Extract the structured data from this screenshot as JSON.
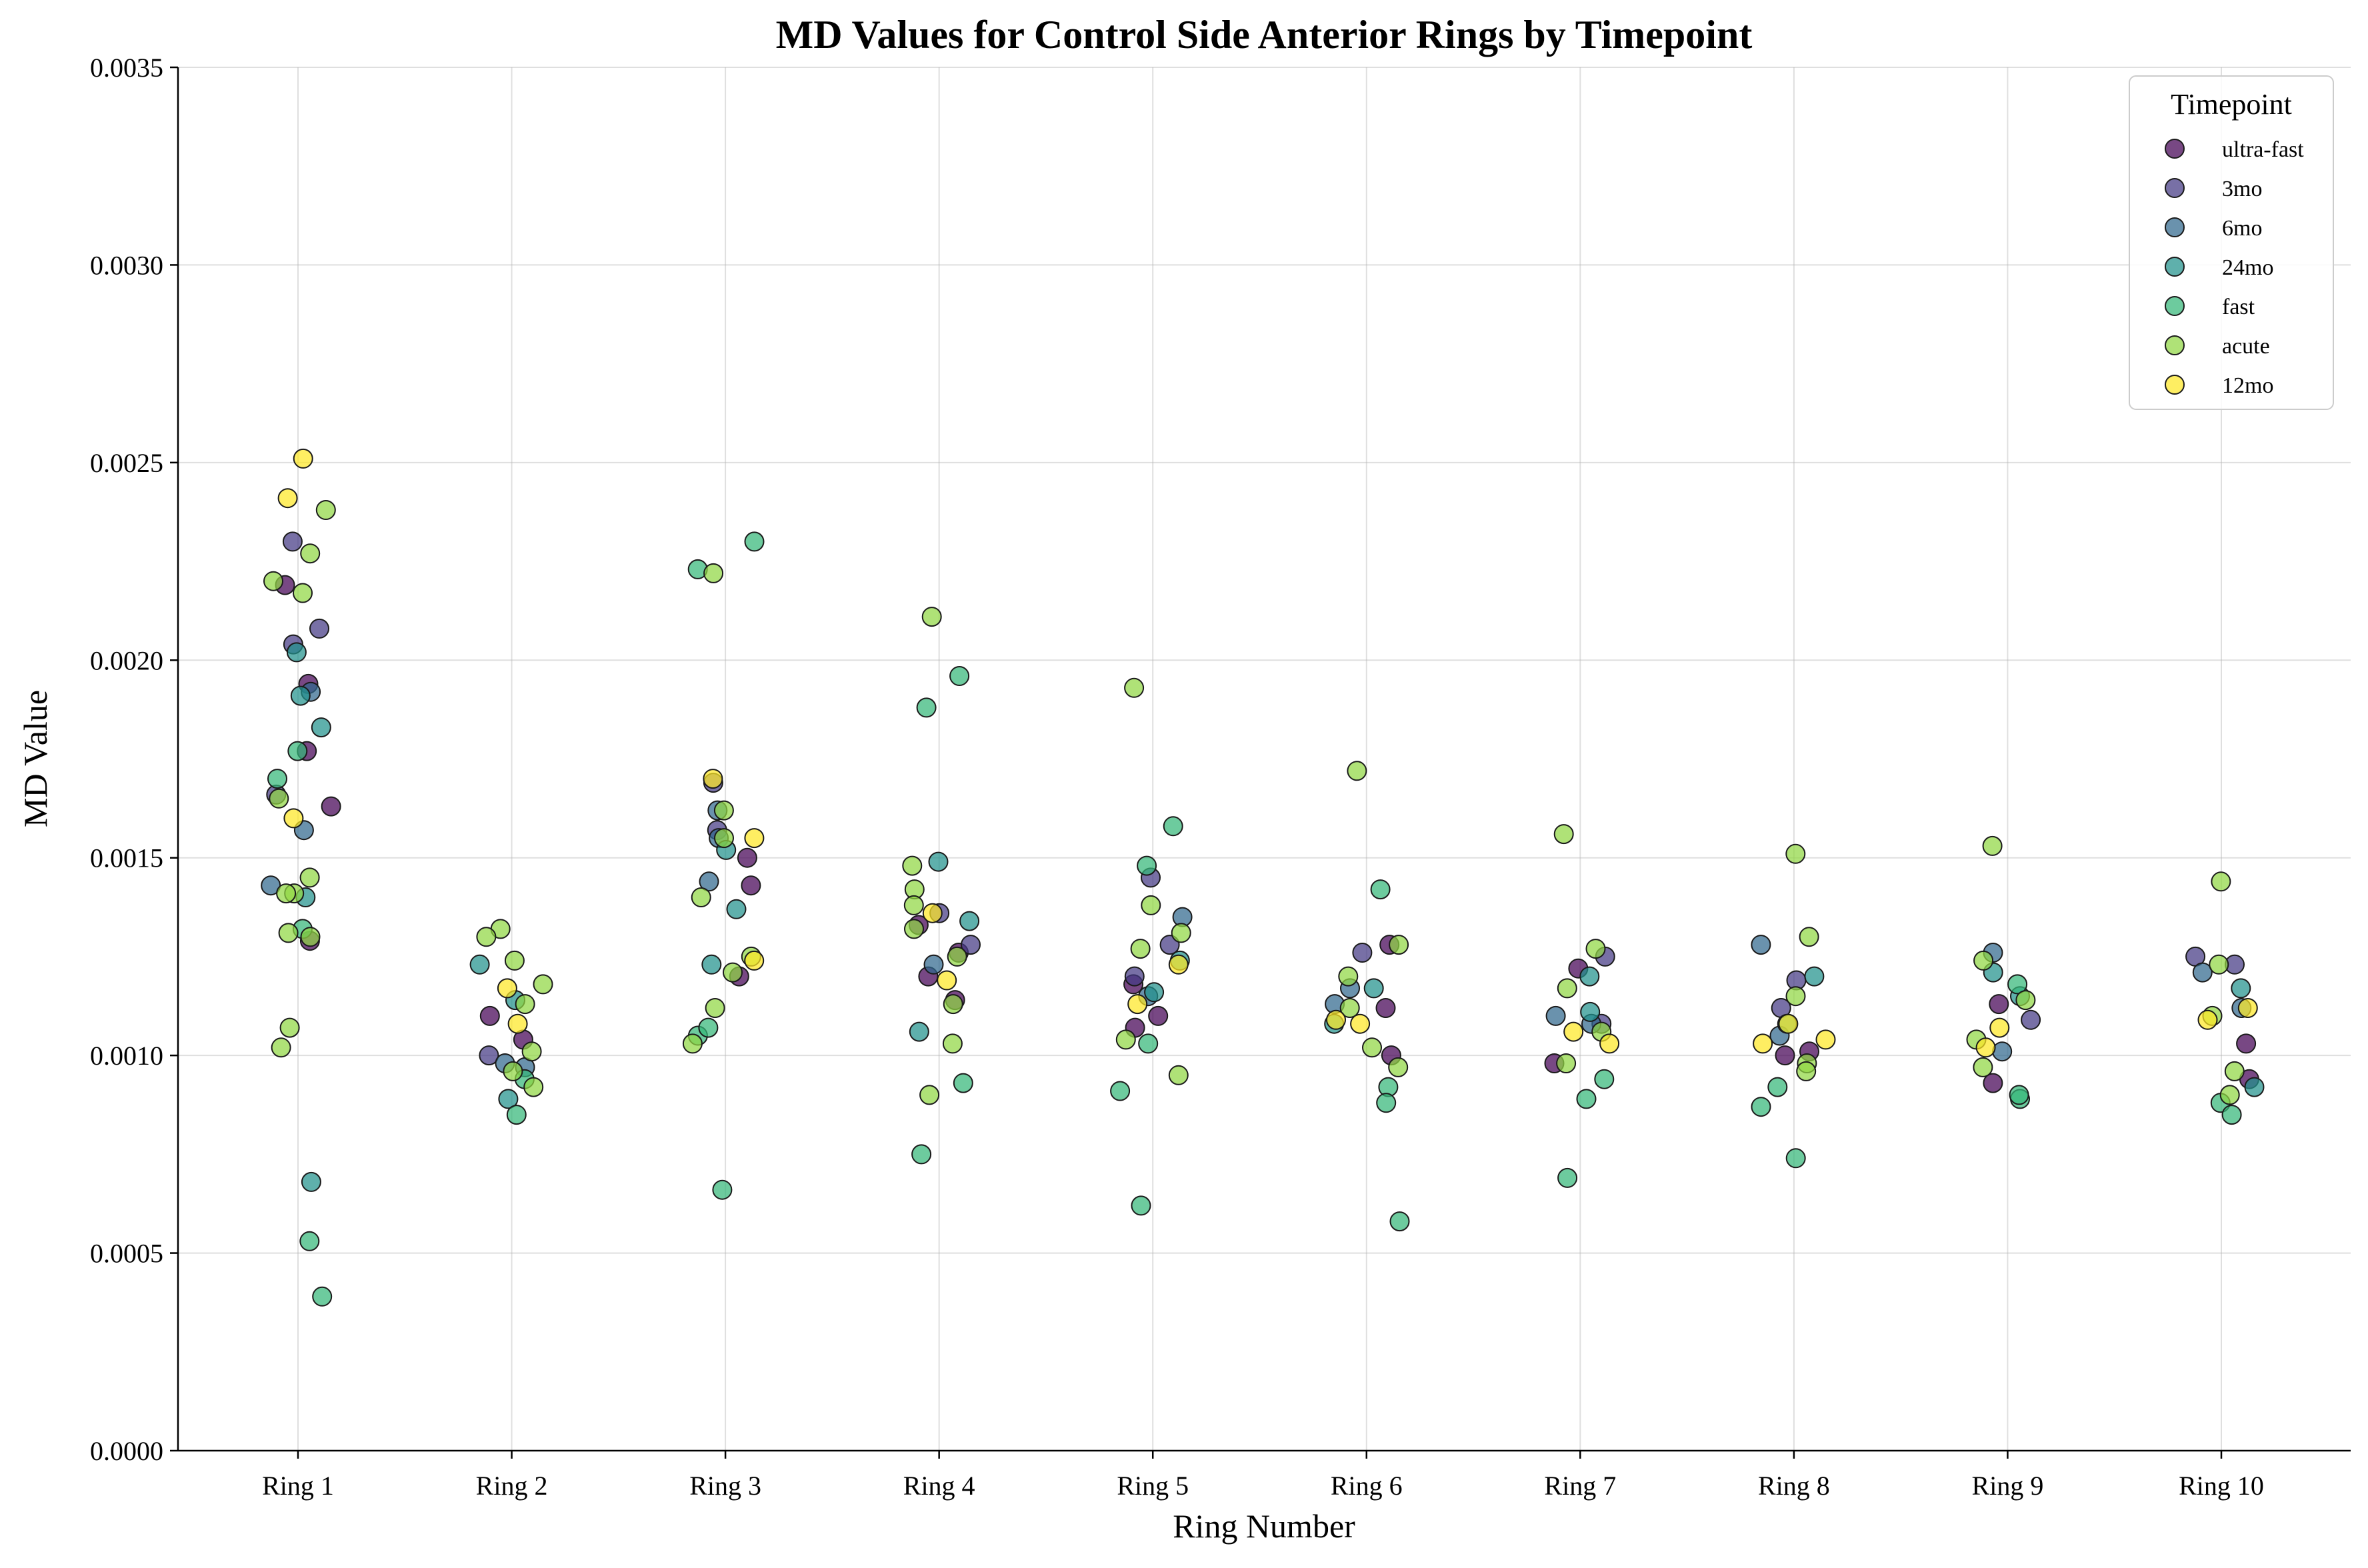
{
  "chart_data": {
    "type": "scatter",
    "title": "MD Values for Control Side Anterior Rings by Timepoint",
    "xlabel": "Ring Number",
    "ylabel": "MD Value",
    "ylim": [
      0,
      0.0035
    ],
    "yticks": [
      0.0,
      0.0005,
      0.001,
      0.0015,
      0.002,
      0.0025,
      0.003,
      0.0035
    ],
    "ytick_labels": [
      "0.0000",
      "0.0005",
      "0.0010",
      "0.0015",
      "0.0020",
      "0.0025",
      "0.0030",
      "0.0035"
    ],
    "categories": [
      "Ring 1",
      "Ring 2",
      "Ring 3",
      "Ring 4",
      "Ring 5",
      "Ring 6",
      "Ring 7",
      "Ring 8",
      "Ring 9",
      "Ring 10"
    ],
    "grid": true,
    "legend": {
      "title": "Timepoint",
      "placement": "top-right"
    },
    "series": [
      {
        "name": "ultra-fast",
        "color": "#440154",
        "points": [
          [
            1,
            0.00194
          ],
          [
            1,
            0.00219
          ],
          [
            1,
            0.00177
          ],
          [
            1,
            0.00163
          ],
          [
            1,
            0.00129
          ],
          [
            2,
            0.00104
          ],
          [
            2,
            0.0011
          ],
          [
            3,
            0.00143
          ],
          [
            3,
            0.0012
          ],
          [
            3,
            0.0015
          ],
          [
            4,
            0.00114
          ],
          [
            4,
            0.0012
          ],
          [
            4,
            0.00126
          ],
          [
            4,
            0.00133
          ],
          [
            5,
            0.0011
          ],
          [
            5,
            0.00107
          ],
          [
            5,
            0.00118
          ],
          [
            6,
            0.00112
          ],
          [
            6,
            0.001
          ],
          [
            6,
            0.00128
          ],
          [
            7,
            0.00098
          ],
          [
            7,
            0.00122
          ],
          [
            8,
            0.00101
          ],
          [
            8,
            0.001
          ],
          [
            9,
            0.00093
          ],
          [
            9,
            0.00113
          ],
          [
            10,
            0.00094
          ],
          [
            10,
            0.00103
          ]
        ]
      },
      {
        "name": "3mo",
        "color": "#443983",
        "points": [
          [
            1,
            0.0023
          ],
          [
            1,
            0.00204
          ],
          [
            1,
            0.00208
          ],
          [
            1,
            0.00166
          ],
          [
            2,
            0.001
          ],
          [
            3,
            0.00169
          ],
          [
            3,
            0.00157
          ],
          [
            4,
            0.00136
          ],
          [
            4,
            0.00128
          ],
          [
            5,
            0.00145
          ],
          [
            5,
            0.00128
          ],
          [
            5,
            0.0012
          ],
          [
            6,
            0.00126
          ],
          [
            7,
            0.00125
          ],
          [
            7,
            0.00108
          ],
          [
            8,
            0.00112
          ],
          [
            8,
            0.00119
          ],
          [
            9,
            0.00109
          ],
          [
            10,
            0.00123
          ],
          [
            10,
            0.00125
          ]
        ]
      },
      {
        "name": "6mo",
        "color": "#31688e",
        "points": [
          [
            1,
            0.00157
          ],
          [
            1,
            0.00143
          ],
          [
            1,
            0.00192
          ],
          [
            2,
            0.00098
          ],
          [
            2,
            0.00097
          ],
          [
            3,
            0.00144
          ],
          [
            3,
            0.00162
          ],
          [
            3,
            0.00155
          ],
          [
            4,
            0.00123
          ],
          [
            5,
            0.00135
          ],
          [
            5,
            0.00115
          ],
          [
            6,
            0.00113
          ],
          [
            6,
            0.00117
          ],
          [
            7,
            0.0011
          ],
          [
            7,
            0.00108
          ],
          [
            8,
            0.00128
          ],
          [
            8,
            0.00105
          ],
          [
            9,
            0.00126
          ],
          [
            9,
            0.00101
          ],
          [
            10,
            0.00121
          ],
          [
            10,
            0.00112
          ]
        ]
      },
      {
        "name": "24mo",
        "color": "#21918c",
        "points": [
          [
            1,
            0.00202
          ],
          [
            1,
            0.00191
          ],
          [
            1,
            0.00183
          ],
          [
            1,
            0.0014
          ],
          [
            1,
            0.00068
          ],
          [
            2,
            0.00123
          ],
          [
            2,
            0.00114
          ],
          [
            2,
            0.00089
          ],
          [
            3,
            0.00152
          ],
          [
            3,
            0.00137
          ],
          [
            3,
            0.00123
          ],
          [
            4,
            0.00149
          ],
          [
            4,
            0.00134
          ],
          [
            4,
            0.00106
          ],
          [
            5,
            0.00116
          ],
          [
            5,
            0.00124
          ],
          [
            6,
            0.00117
          ],
          [
            6,
            0.00108
          ],
          [
            7,
            0.0012
          ],
          [
            7,
            0.00111
          ],
          [
            8,
            0.00108
          ],
          [
            8,
            0.0012
          ],
          [
            9,
            0.00115
          ],
          [
            9,
            0.00121
          ],
          [
            10,
            0.00117
          ],
          [
            10,
            0.00092
          ]
        ]
      },
      {
        "name": "fast",
        "color": "#35b779",
        "points": [
          [
            1,
            0.00177
          ],
          [
            1,
            0.0017
          ],
          [
            1,
            0.00132
          ],
          [
            1,
            0.00053
          ],
          [
            1,
            0.00039
          ],
          [
            2,
            0.00085
          ],
          [
            2,
            0.00094
          ],
          [
            3,
            0.00223
          ],
          [
            3,
            0.0023
          ],
          [
            3,
            0.00105
          ],
          [
            3,
            0.00107
          ],
          [
            3,
            0.00066
          ],
          [
            4,
            0.00196
          ],
          [
            4,
            0.00188
          ],
          [
            4,
            0.00093
          ],
          [
            4,
            0.00075
          ],
          [
            5,
            0.00158
          ],
          [
            5,
            0.00148
          ],
          [
            5,
            0.00103
          ],
          [
            5,
            0.00091
          ],
          [
            5,
            0.00062
          ],
          [
            6,
            0.00142
          ],
          [
            6,
            0.00092
          ],
          [
            6,
            0.00088
          ],
          [
            6,
            0.00058
          ],
          [
            7,
            0.00089
          ],
          [
            7,
            0.00094
          ],
          [
            7,
            0.00069
          ],
          [
            8,
            0.00087
          ],
          [
            8,
            0.00092
          ],
          [
            8,
            0.00074
          ],
          [
            9,
            0.00118
          ],
          [
            9,
            0.00089
          ],
          [
            9,
            0.0009
          ],
          [
            10,
            0.00088
          ],
          [
            10,
            0.00085
          ]
        ]
      },
      {
        "name": "acute",
        "color": "#90d743",
        "points": [
          [
            1,
            0.00238
          ],
          [
            1,
            0.00227
          ],
          [
            1,
            0.0022
          ],
          [
            1,
            0.00217
          ],
          [
            1,
            0.00165
          ],
          [
            1,
            0.00145
          ],
          [
            1,
            0.00141
          ],
          [
            1,
            0.00141
          ],
          [
            1,
            0.0013
          ],
          [
            1,
            0.00131
          ],
          [
            1,
            0.00107
          ],
          [
            1,
            0.00102
          ],
          [
            2,
            0.00132
          ],
          [
            2,
            0.0013
          ],
          [
            2,
            0.00124
          ],
          [
            2,
            0.00118
          ],
          [
            2,
            0.00113
          ],
          [
            2,
            0.00096
          ],
          [
            2,
            0.00092
          ],
          [
            2,
            0.00101
          ],
          [
            3,
            0.00222
          ],
          [
            3,
            0.00162
          ],
          [
            3,
            0.00155
          ],
          [
            3,
            0.0014
          ],
          [
            3,
            0.00125
          ],
          [
            3,
            0.00112
          ],
          [
            3,
            0.00103
          ],
          [
            3,
            0.00121
          ],
          [
            4,
            0.00211
          ],
          [
            4,
            0.00148
          ],
          [
            4,
            0.00142
          ],
          [
            4,
            0.00138
          ],
          [
            4,
            0.00132
          ],
          [
            4,
            0.00125
          ],
          [
            4,
            0.00113
          ],
          [
            4,
            0.00103
          ],
          [
            4,
            0.0009
          ],
          [
            5,
            0.00193
          ],
          [
            5,
            0.00138
          ],
          [
            5,
            0.00131
          ],
          [
            5,
            0.00127
          ],
          [
            5,
            0.00104
          ],
          [
            5,
            0.00095
          ],
          [
            6,
            0.00172
          ],
          [
            6,
            0.00128
          ],
          [
            6,
            0.0012
          ],
          [
            6,
            0.00112
          ],
          [
            6,
            0.00102
          ],
          [
            6,
            0.00097
          ],
          [
            7,
            0.00156
          ],
          [
            7,
            0.00127
          ],
          [
            7,
            0.00117
          ],
          [
            7,
            0.00106
          ],
          [
            7,
            0.00098
          ],
          [
            8,
            0.00151
          ],
          [
            8,
            0.0013
          ],
          [
            8,
            0.00115
          ],
          [
            8,
            0.00098
          ],
          [
            8,
            0.00096
          ],
          [
            9,
            0.00153
          ],
          [
            9,
            0.00124
          ],
          [
            9,
            0.00114
          ],
          [
            9,
            0.00104
          ],
          [
            9,
            0.00097
          ],
          [
            10,
            0.00144
          ],
          [
            10,
            0.00123
          ],
          [
            10,
            0.0011
          ],
          [
            10,
            0.00096
          ],
          [
            10,
            0.0009
          ]
        ]
      },
      {
        "name": "12mo",
        "color": "#fde725",
        "points": [
          [
            1,
            0.00251
          ],
          [
            1,
            0.00241
          ],
          [
            1,
            0.0016
          ],
          [
            2,
            0.00117
          ],
          [
            2,
            0.00108
          ],
          [
            3,
            0.0017
          ],
          [
            3,
            0.00155
          ],
          [
            3,
            0.00124
          ],
          [
            4,
            0.00119
          ],
          [
            4,
            0.00136
          ],
          [
            5,
            0.00123
          ],
          [
            5,
            0.00113
          ],
          [
            6,
            0.00109
          ],
          [
            6,
            0.00108
          ],
          [
            7,
            0.00106
          ],
          [
            7,
            0.00103
          ],
          [
            8,
            0.00104
          ],
          [
            8,
            0.00103
          ],
          [
            8,
            0.00108
          ],
          [
            9,
            0.00107
          ],
          [
            9,
            0.00102
          ],
          [
            10,
            0.00112
          ],
          [
            10,
            0.00109
          ]
        ]
      }
    ]
  }
}
